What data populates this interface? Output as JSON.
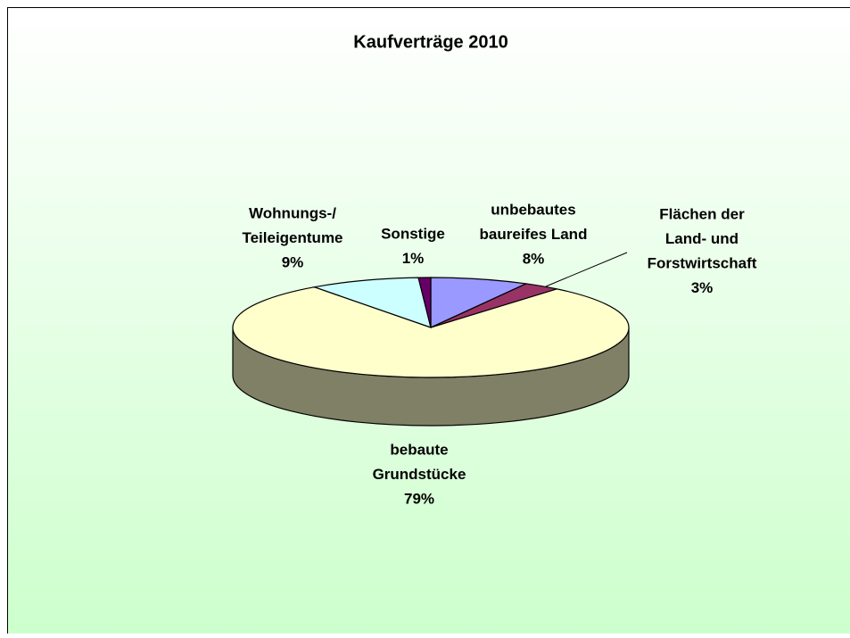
{
  "chart_data": {
    "type": "pie3d",
    "title": "Kaufverträge 2010",
    "categories": [
      [
        "unbebautes",
        "baureifes Land"
      ],
      [
        "Flächen der",
        "Land- und",
        "Forstwirtschaft"
      ],
      [
        "bebaute",
        "Grundstücke"
      ],
      [
        "Wohnungs-/",
        "Teileigentume"
      ],
      [
        "Sonstige"
      ]
    ],
    "values": [
      8,
      3,
      79,
      9,
      1
    ],
    "value_labels": [
      "8%",
      "3%",
      "79%",
      "9%",
      "1%"
    ],
    "colors": [
      "#9999ff",
      "#993366",
      "#ffffcc",
      "#ccffff",
      "#660066"
    ]
  }
}
